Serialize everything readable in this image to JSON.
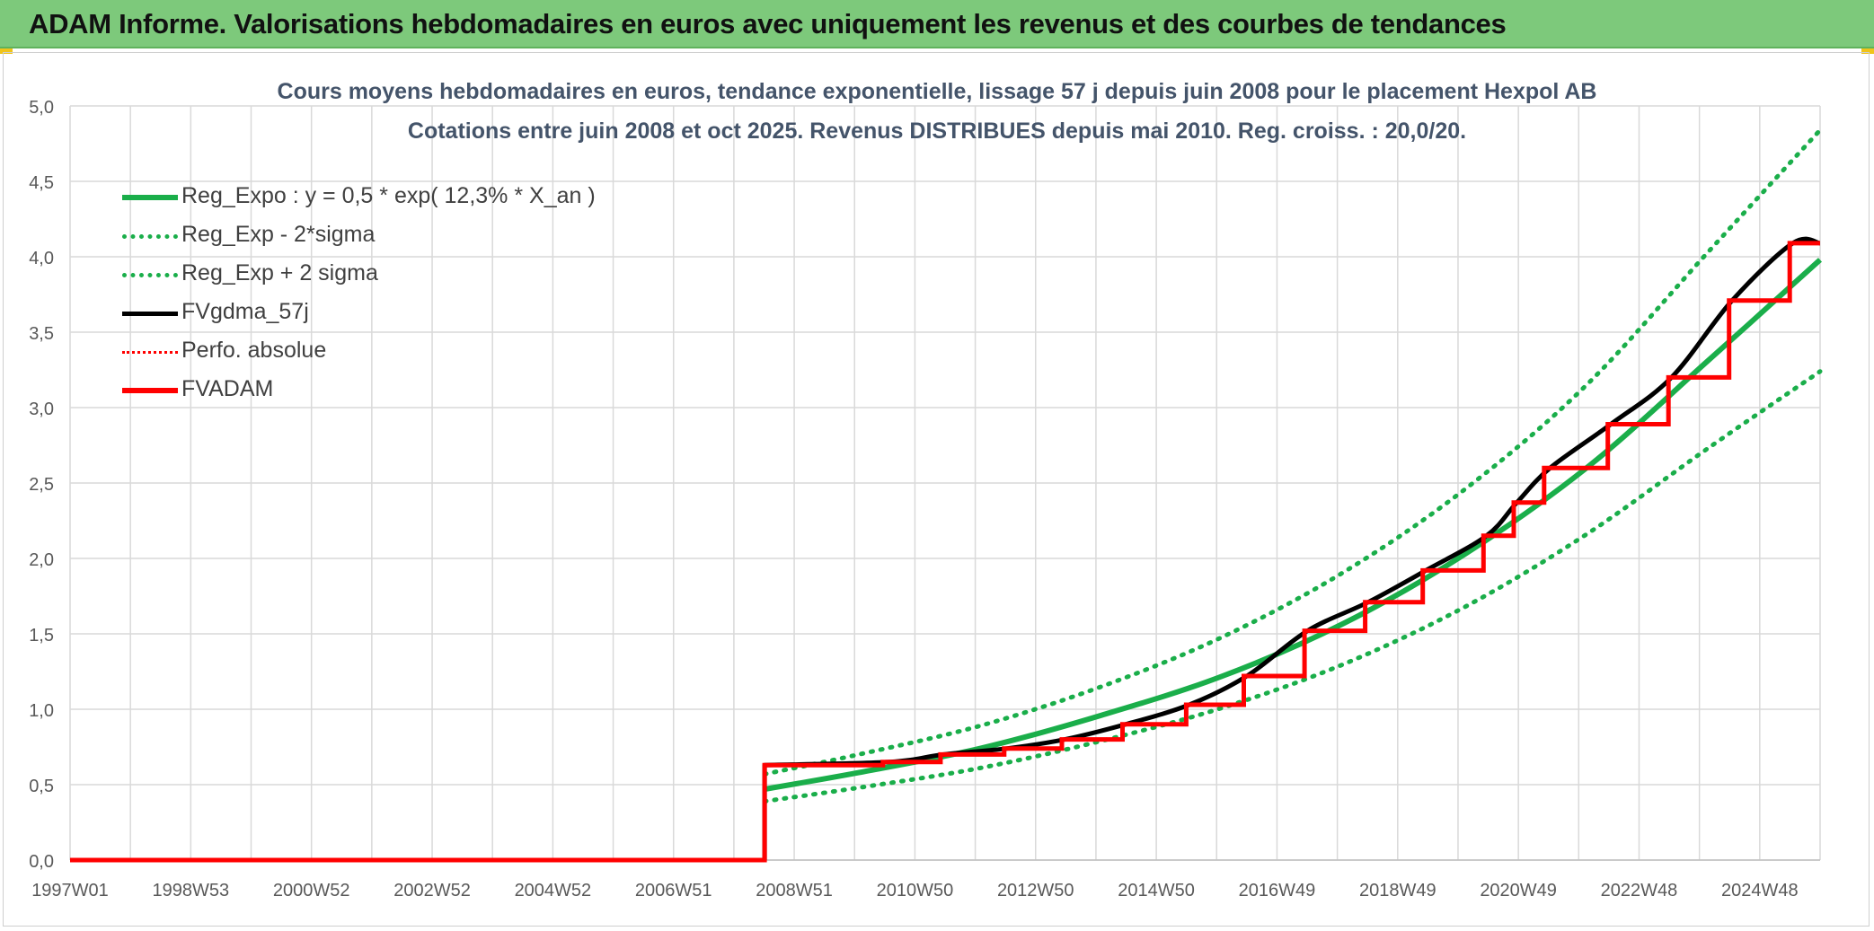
{
  "header": {
    "title": "ADAM Informe. Valorisations hebdomadaires en euros avec uniquement les revenus et des courbes de tendances"
  },
  "chart_data": {
    "type": "line",
    "title_line1": "Cours moyens hebdomadaires en euros, tendance exponentielle, lissage 57 j depuis juin 2008 pour le placement Hexpol AB",
    "title_line2": "Cotations entre juin 2008 et oct 2025. Revenus DISTRIBUES depuis mai 2010. Reg. croiss. : 20,0/20.",
    "xlabel": "",
    "ylabel": "",
    "ylim": [
      0,
      5
    ],
    "xlim": [
      1997.0,
      2025.85
    ],
    "y_ticks": [
      0,
      0.5,
      1,
      1.5,
      2,
      2.5,
      3,
      3.5,
      4,
      4.5,
      5
    ],
    "y_tick_labels": [
      "0,0",
      "0,5",
      "1,0",
      "1,5",
      "2,0",
      "2,5",
      "3,0",
      "3,5",
      "4,0",
      "4,5",
      "5,0"
    ],
    "x_tick_labels": [
      "1997W01",
      "1998W53",
      "2000W52",
      "2002W52",
      "2004W52",
      "2006W51",
      "2008W51",
      "2010W50",
      "2012W50",
      "2014W50",
      "2016W49",
      "2018W49",
      "2020W49",
      "2022W48",
      "2024W48"
    ],
    "grid": true,
    "legend_position": "top-left",
    "colors": {
      "green": "#1aae4a",
      "black": "#000000",
      "red": "#ff0000",
      "grid": "#d9d9d9",
      "tick_text": "#595959"
    },
    "series": [
      {
        "name": "Reg_Expo : y = 0,5 * exp( 12,3% *  X_an )",
        "style": "solid-green",
        "points": [
          [
            2008.45,
            0.47
          ],
          [
            2010,
            0.58
          ],
          [
            2012,
            0.74
          ],
          [
            2014,
            0.96
          ],
          [
            2016,
            1.22
          ],
          [
            2018,
            1.57
          ],
          [
            2020,
            2.03
          ],
          [
            2022,
            2.6
          ],
          [
            2024,
            3.31
          ],
          [
            2025.85,
            3.98
          ]
        ]
      },
      {
        "name": "Reg_Exp - 2*sigma",
        "style": "dotted-green",
        "points": [
          [
            2008.45,
            0.39
          ],
          [
            2010,
            0.48
          ],
          [
            2012,
            0.61
          ],
          [
            2014,
            0.79
          ],
          [
            2016,
            1.01
          ],
          [
            2018,
            1.3
          ],
          [
            2020,
            1.68
          ],
          [
            2022,
            2.16
          ],
          [
            2024,
            2.73
          ],
          [
            2025.85,
            3.24
          ]
        ]
      },
      {
        "name": "Reg_Exp + 2 sigma",
        "style": "dotted-green",
        "points": [
          [
            2008.45,
            0.57
          ],
          [
            2010,
            0.7
          ],
          [
            2012,
            0.89
          ],
          [
            2014,
            1.15
          ],
          [
            2016,
            1.48
          ],
          [
            2018,
            1.91
          ],
          [
            2020,
            2.46
          ],
          [
            2022,
            3.15
          ],
          [
            2024,
            4.03
          ],
          [
            2025.85,
            4.84
          ]
        ]
      },
      {
        "name": "FVgdma_57j",
        "style": "solid-black",
        "points": [
          [
            1997.0,
            0
          ],
          [
            2008.45,
            0
          ],
          [
            2008.45,
            0.63
          ],
          [
            2010.5,
            0.65
          ],
          [
            2011.4,
            0.7
          ],
          [
            2012.45,
            0.74
          ],
          [
            2013.4,
            0.8
          ],
          [
            2014.4,
            0.9
          ],
          [
            2015.45,
            1.03
          ],
          [
            2016.4,
            1.22
          ],
          [
            2017.4,
            1.52
          ],
          [
            2018.4,
            1.71
          ],
          [
            2019.35,
            1.92
          ],
          [
            2020.35,
            2.15
          ],
          [
            2020.85,
            2.37
          ],
          [
            2021.4,
            2.6
          ],
          [
            2022.4,
            2.89
          ],
          [
            2023.4,
            3.2
          ],
          [
            2024.4,
            3.71
          ],
          [
            2025.4,
            4.09
          ],
          [
            2025.85,
            4.09
          ]
        ]
      },
      {
        "name": "Perfo. absolue",
        "style": "dotted-red",
        "points": []
      },
      {
        "name": "FVADAM",
        "style": "solid-red-step",
        "points": [
          [
            1997.0,
            0
          ],
          [
            2008.45,
            0
          ],
          [
            2008.45,
            0.63
          ],
          [
            2010.4,
            0.63
          ],
          [
            2010.4,
            0.65
          ],
          [
            2011.35,
            0.65
          ],
          [
            2011.35,
            0.7
          ],
          [
            2012.4,
            0.7
          ],
          [
            2012.4,
            0.74
          ],
          [
            2013.35,
            0.74
          ],
          [
            2013.35,
            0.8
          ],
          [
            2014.35,
            0.8
          ],
          [
            2014.35,
            0.9
          ],
          [
            2015.4,
            0.9
          ],
          [
            2015.4,
            1.03
          ],
          [
            2016.35,
            1.03
          ],
          [
            2016.35,
            1.22
          ],
          [
            2017.35,
            1.22
          ],
          [
            2017.35,
            1.52
          ],
          [
            2018.35,
            1.52
          ],
          [
            2018.35,
            1.71
          ],
          [
            2019.3,
            1.71
          ],
          [
            2019.3,
            1.92
          ],
          [
            2020.3,
            1.92
          ],
          [
            2020.3,
            2.15
          ],
          [
            2020.8,
            2.15
          ],
          [
            2020.8,
            2.37
          ],
          [
            2021.3,
            2.37
          ],
          [
            2021.3,
            2.6
          ],
          [
            2022.35,
            2.6
          ],
          [
            2022.35,
            2.89
          ],
          [
            2023.35,
            2.89
          ],
          [
            2023.35,
            3.2
          ],
          [
            2024.35,
            3.2
          ],
          [
            2024.35,
            3.71
          ],
          [
            2025.35,
            3.71
          ],
          [
            2025.35,
            4.09
          ],
          [
            2025.85,
            4.09
          ]
        ]
      }
    ]
  }
}
